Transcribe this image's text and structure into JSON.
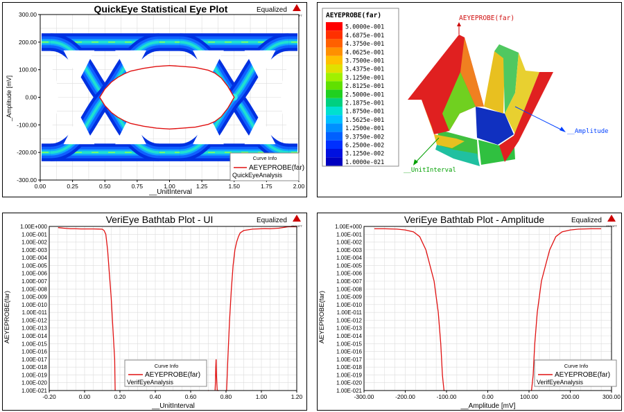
{
  "colors": {
    "red": "#e01010",
    "axisGrid": "#d8d8d8",
    "frame": "#000000",
    "green": "#00a000",
    "blue": "#0040ff"
  },
  "eye": {
    "title": "QuickEye Statistical Eye Plot",
    "badge": "Equalized",
    "logo": "ANSOFT",
    "xlabel": "__UnitInterval",
    "ylabel": "_Amplitude [mV]",
    "xticks": [
      "0.00",
      "0.25",
      "0.50",
      "0.75",
      "1.00",
      "1.25",
      "1.50",
      "1.75",
      "2.00"
    ],
    "yticks": [
      "300.00",
      "200.00",
      "100.00",
      "0.00",
      "-100.00",
      "-200.00",
      "-300.00"
    ],
    "legend": {
      "header": "Curve Info",
      "name": "AEYEPROBE(far)",
      "sub": "QuickEyeAnalysis"
    }
  },
  "surface": {
    "legend_title": "AEYEPROBE(far)",
    "levels": [
      "5.0000e-001",
      "4.6875e-001",
      "4.3750e-001",
      "4.0625e-001",
      "3.7500e-001",
      "3.4375e-001",
      "3.1250e-001",
      "2.8125e-001",
      "2.5000e-001",
      "2.1875e-001",
      "1.8750e-001",
      "1.5625e-001",
      "1.2500e-001",
      "9.3750e-002",
      "6.2500e-002",
      "3.1250e-002",
      "1.0000e-021"
    ],
    "level_colors": [
      "#ff0000",
      "#ff3000",
      "#ff6000",
      "#ff9000",
      "#ffc000",
      "#e0e000",
      "#a0f000",
      "#60e000",
      "#20d020",
      "#00d080",
      "#00e0d0",
      "#00c0ff",
      "#0090ff",
      "#0060ff",
      "#0030ff",
      "#0010e0",
      "#0000c0"
    ],
    "top_label": "AEYEPROBE(far)",
    "axis_amp": "__Amplitude",
    "axis_ui": "__UnitInterval"
  },
  "ui_plot": {
    "title": "VeriEye Bathtab Plot - UI",
    "badge": "Equalized",
    "logo": "ANSOFT",
    "xlabel": "__UnitInterval",
    "ylabel": "AEYEPROBE(far)",
    "xticks": [
      "-0.20",
      "0.00",
      "0.20",
      "0.40",
      "0.60",
      "0.80",
      "1.00",
      "1.20"
    ],
    "yticks": [
      "1.00E+000",
      "1.00E-001",
      "1.00E-002",
      "1.00E-003",
      "1.00E-004",
      "1.00E-005",
      "1.00E-006",
      "1.00E-007",
      "1.00E-008",
      "1.00E-009",
      "1.00E-010",
      "1.00E-011",
      "1.00E-012",
      "1.00E-013",
      "1.00E-014",
      "1.00E-015",
      "1.00E-016",
      "1.00E-017",
      "1.00E-018",
      "1.00E-019",
      "1.00E-020",
      "1.00E-021"
    ],
    "legend": {
      "header": "Curve Info",
      "name": "AEYEPROBE(far)",
      "sub": "VerifEyeAnalysis"
    }
  },
  "amp_plot": {
    "title": "VeriEye Bathtab Plot - Amplitude",
    "badge": "Equalized",
    "logo": "ANSOFT",
    "xlabel": "__Amplitude [mV]",
    "ylabel": "AEYEPROBE(far)",
    "xticks": [
      "-300.00",
      "-200.00",
      "-100.00",
      "0.00",
      "100.00",
      "200.00",
      "300.00"
    ],
    "yticks": [
      "1.00E+000",
      "1.00E-001",
      "1.00E-002",
      "1.00E-003",
      "1.00E-004",
      "1.00E-005",
      "1.00E-006",
      "1.00E-007",
      "1.00E-008",
      "1.00E-009",
      "1.00E-010",
      "1.00E-011",
      "1.00E-012",
      "1.00E-013",
      "1.00E-014",
      "1.00E-015",
      "1.00E-016",
      "1.00E-017",
      "1.00E-018",
      "1.00E-019",
      "1.00E-020",
      "1.00E-021"
    ],
    "legend": {
      "header": "Curve Info",
      "name": "AEYEPROBE(far)",
      "sub": "VerifEyeAnalysis"
    }
  },
  "chart_data": [
    {
      "type": "heatmap",
      "title": "QuickEye Statistical Eye Plot",
      "xlabel": "__UnitInterval",
      "ylabel": "_Amplitude [mV]",
      "xlim": [
        0,
        2
      ],
      "ylim": [
        -300,
        300
      ],
      "series": [
        {
          "name": "AEYEPROBE(far)",
          "x": [
            0.46,
            0.5,
            0.55,
            0.6,
            0.65,
            0.7,
            0.8,
            0.9,
            1.0,
            1.1,
            1.2,
            1.3,
            1.35,
            1.4,
            1.45,
            1.5,
            1.45,
            1.4,
            1.35,
            1.3,
            1.2,
            1.1,
            1.0,
            0.9,
            0.8,
            0.7,
            0.65,
            0.6,
            0.55,
            0.5,
            0.46
          ],
          "y": [
            0,
            30,
            55,
            72,
            85,
            95,
            105,
            112,
            115,
            112,
            108,
            98,
            88,
            70,
            40,
            0,
            -40,
            -70,
            -88,
            -98,
            -108,
            -112,
            -115,
            -112,
            -105,
            -95,
            -85,
            -72,
            -55,
            -30,
            0
          ]
        }
      ]
    },
    {
      "type": "line",
      "title": "VeriEye Bathtab Plot - UI",
      "xlabel": "__UnitInterval",
      "ylabel": "AEYEPROBE(far)",
      "xlim": [
        -0.2,
        1.2
      ],
      "ylim": [
        1e-21,
        1
      ],
      "yscale": "log",
      "series": [
        {
          "name": "AEYEPROBE(far)",
          "x": [
            -0.15,
            -0.12,
            -0.08,
            -0.05,
            -0.02,
            0.0,
            0.02,
            0.05,
            0.08,
            0.1,
            0.11,
            0.12,
            0.13,
            0.14,
            0.15,
            0.16,
            0.17,
            0.172,
            0.173,
            null,
            0.698,
            0.7,
            0.702,
            null,
            0.738,
            0.74,
            0.742,
            0.744,
            0.746,
            0.75,
            0.754,
            0.757,
            0.76,
            null,
            0.803,
            0.805,
            0.81,
            0.82,
            0.83,
            0.84,
            0.85,
            0.86,
            0.87,
            0.88,
            0.9,
            0.95,
            1.0,
            1.02,
            1.05,
            1.08,
            1.1,
            1.15,
            1.18,
            1.2
          ],
          "y": [
            0.7,
            0.6,
            0.5,
            0.5,
            0.48,
            0.48,
            0.48,
            0.48,
            0.46,
            0.44,
            0.3,
            0.1,
            0.001,
            1e-06,
            1e-09,
            1e-13,
            1e-17,
            1e-20,
            1e-21,
            null,
            1e-21,
            1e-21,
            1e-21,
            null,
            1e-21,
            1e-20,
            1e-18,
            1e-17,
            1e-19,
            1e-21,
            1e-21,
            1e-21,
            1e-21,
            null,
            1e-21,
            1e-20,
            1e-17,
            1e-12,
            1e-08,
            1e-05,
            0.001,
            0.01,
            0.05,
            0.15,
            0.3,
            0.45,
            0.5,
            0.52,
            0.5,
            0.55,
            0.6,
            0.9,
            0.9,
            0.9
          ]
        }
      ]
    },
    {
      "type": "line",
      "title": "VeriEye Bathtab Plot - Amplitude",
      "xlabel": "__Amplitude [mV]",
      "ylabel": "AEYEPROBE(far)",
      "xlim": [
        -300,
        300
      ],
      "ylim": [
        1e-21,
        1
      ],
      "yscale": "log",
      "series": [
        {
          "name": "AEYEPROBE(far)",
          "x": [
            -275,
            -250,
            -220,
            -200,
            -180,
            -165,
            -150,
            -140,
            -130,
            -125,
            -120,
            -117,
            -114,
            -112,
            -110,
            -108,
            -106,
            -104,
            null,
            104,
            106,
            108,
            110,
            112,
            114,
            117,
            120,
            125,
            130,
            140,
            150,
            165,
            180,
            200,
            220,
            250,
            275
          ],
          "y": [
            0.5,
            0.5,
            0.45,
            0.35,
            0.2,
            0.05,
            0.001,
            1e-05,
            1e-07,
            1e-09,
            1e-11,
            1e-13,
            1e-15,
            1e-17,
            1e-19,
            1e-20,
            1e-21,
            1e-21,
            null,
            1e-21,
            1e-21,
            1e-20,
            1e-19,
            1e-17,
            1e-15,
            1e-13,
            1e-11,
            1e-09,
            1e-07,
            1e-05,
            0.001,
            0.05,
            0.2,
            0.35,
            0.45,
            0.5,
            0.5
          ]
        }
      ]
    }
  ]
}
